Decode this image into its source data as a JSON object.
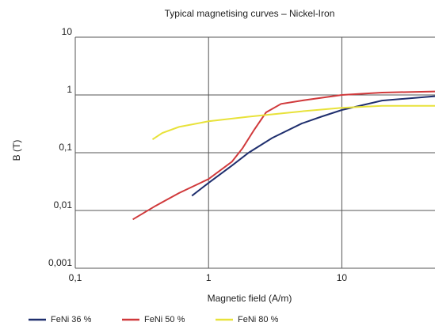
{
  "chart_data": {
    "type": "line",
    "title": "Typical magnetising curves – Nickel-Iron",
    "x_label": "Magnetic field (A/m)",
    "y_label": "B (T)",
    "log_x": true,
    "log_y": true,
    "grid": true,
    "xlim": [
      0.1,
      50
    ],
    "ylim": [
      0.001,
      10
    ],
    "xticks": [
      {
        "value": 0.1,
        "label": "0,1"
      },
      1,
      10
    ],
    "yticks": [
      {
        "value": 0.001,
        "label": "0,001"
      },
      {
        "value": 0.01,
        "label": "0,01"
      },
      {
        "value": 0.1,
        "label": "0,1"
      },
      1,
      10
    ],
    "series": [
      {
        "name": "FeNi 36 %",
        "color": "#1f2f6e",
        "x": [
          0.75,
          1,
          1.5,
          2,
          3,
          5,
          7,
          10,
          20,
          50
        ],
        "values": [
          0.018,
          0.03,
          0.06,
          0.1,
          0.18,
          0.32,
          0.42,
          0.55,
          0.8,
          0.95
        ]
      },
      {
        "name": "FeNi 50 %",
        "color": "#d0393b",
        "x": [
          0.27,
          0.4,
          0.6,
          1,
          1.5,
          1.8,
          2.2,
          2.7,
          3.5,
          5,
          10,
          20,
          50
        ],
        "values": [
          0.007,
          0.012,
          0.02,
          0.035,
          0.07,
          0.12,
          0.25,
          0.5,
          0.7,
          0.8,
          1.0,
          1.1,
          1.15
        ]
      },
      {
        "name": "FeNi 80 %",
        "color": "#e8e23a",
        "x": [
          0.38,
          0.45,
          0.6,
          1,
          2,
          5,
          10,
          20,
          50
        ],
        "values": [
          0.17,
          0.22,
          0.28,
          0.35,
          0.42,
          0.52,
          0.6,
          0.65,
          0.65
        ]
      }
    ]
  }
}
